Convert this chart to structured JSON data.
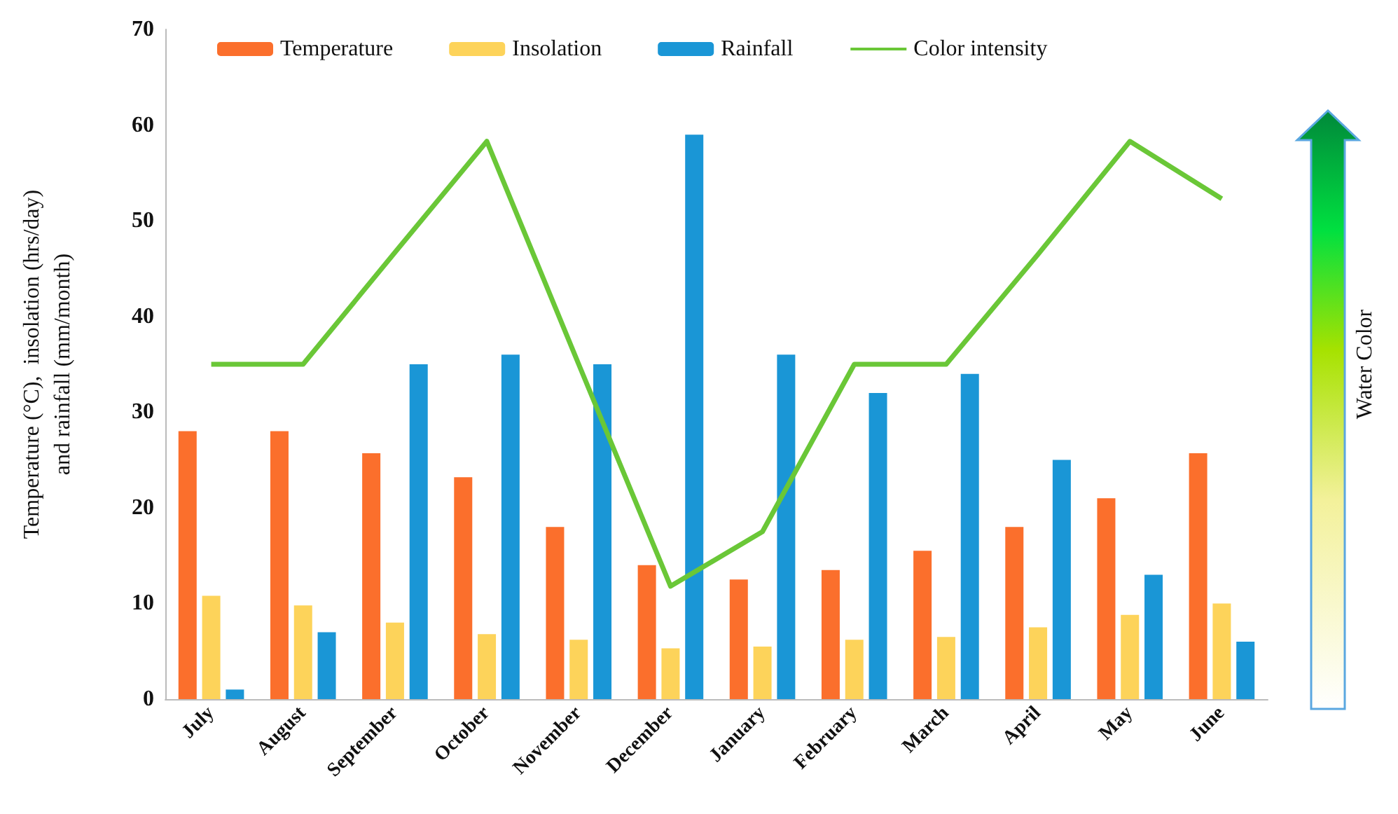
{
  "chart_data": {
    "type": "bar",
    "categories": [
      "July",
      "August",
      "September",
      "October",
      "November",
      "December",
      "January",
      "February",
      "March",
      "April",
      "May",
      "June"
    ],
    "ylabel": "Temperature (°C),  insolation (hrs/day)\nand rainfall (mm/month)",
    "ylim": [
      0,
      70
    ],
    "yticks": [
      0,
      10,
      20,
      30,
      40,
      50,
      60,
      70
    ],
    "series": [
      {
        "name": "Temperature",
        "color": "#fb6f2c",
        "values": [
          28,
          28,
          25.7,
          23.2,
          18,
          14,
          12.5,
          13.5,
          15.5,
          18,
          21,
          25.7
        ]
      },
      {
        "name": "Insolation",
        "color": "#fdd35a",
        "values": [
          10.8,
          9.8,
          8,
          6.8,
          6.2,
          5.3,
          5.5,
          6.2,
          6.5,
          7.5,
          8.8,
          10
        ]
      },
      {
        "name": "Rainfall",
        "color": "#1a96d6",
        "values": [
          1,
          7,
          35,
          36,
          35,
          59,
          36,
          32,
          34,
          25,
          13,
          6
        ]
      },
      {
        "name": "Color intensity",
        "type": "line",
        "color": "#6ac737",
        "values": [
          35,
          35,
          46.7,
          58.3,
          35,
          11.8,
          17.5,
          35,
          35,
          46.5,
          58.3,
          52.3
        ]
      }
    ],
    "annotations": [
      "Water Color"
    ],
    "legend": "top",
    "grid": false,
    "marker": "none",
    "line_style": "solid"
  }
}
